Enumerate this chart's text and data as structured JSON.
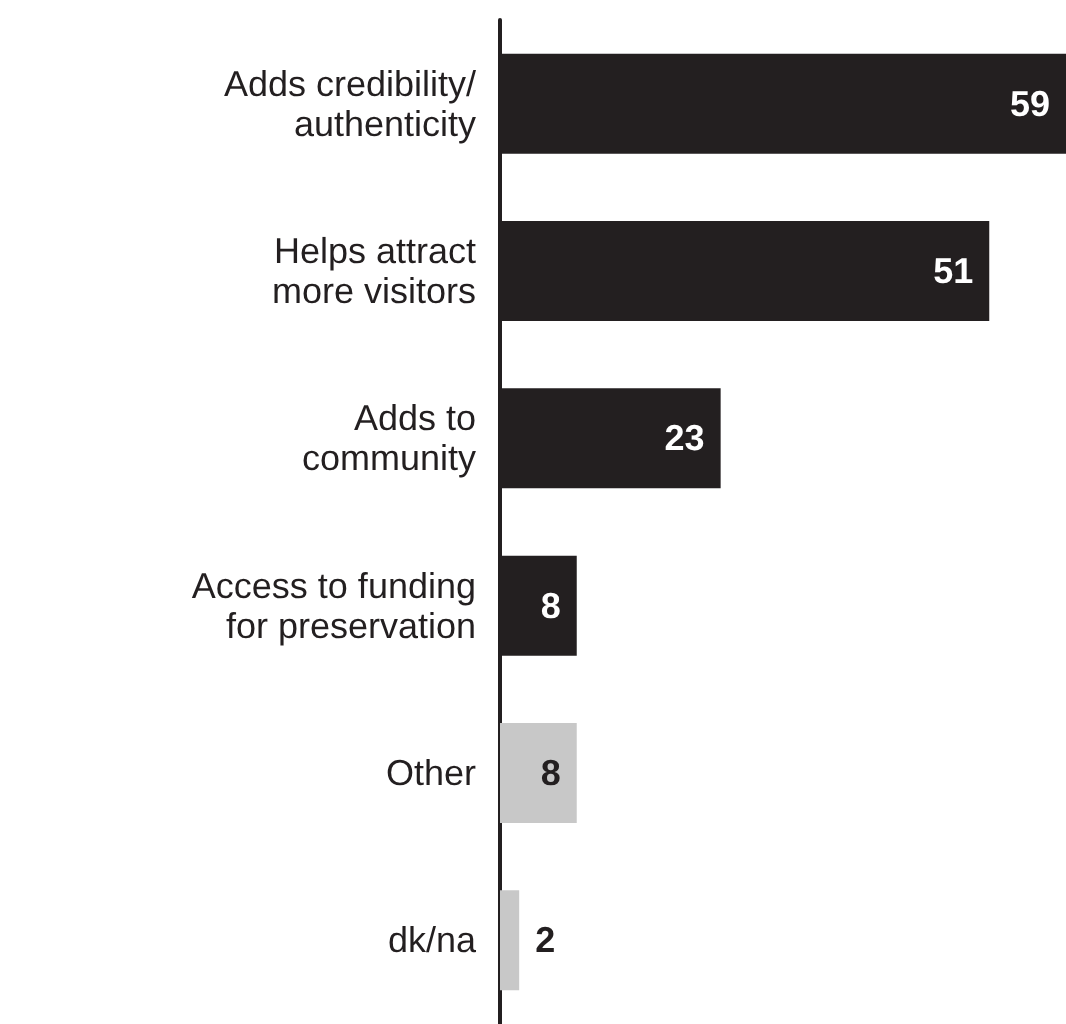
{
  "chart_data": {
    "type": "bar",
    "orientation": "horizontal",
    "categories": [
      "Adds credibility/\nauthenticity",
      "Helps attract\nmore visitors",
      "Adds to\ncommunity",
      "Access to funding\nfor preservation",
      "Other",
      "dk/na"
    ],
    "values": [
      59,
      51,
      23,
      8,
      8,
      2
    ],
    "colors": [
      "#231f20",
      "#231f20",
      "#231f20",
      "#231f20",
      "#c8c8c8",
      "#c8c8c8"
    ],
    "data_labels": true,
    "tick_labels": "y"
  }
}
